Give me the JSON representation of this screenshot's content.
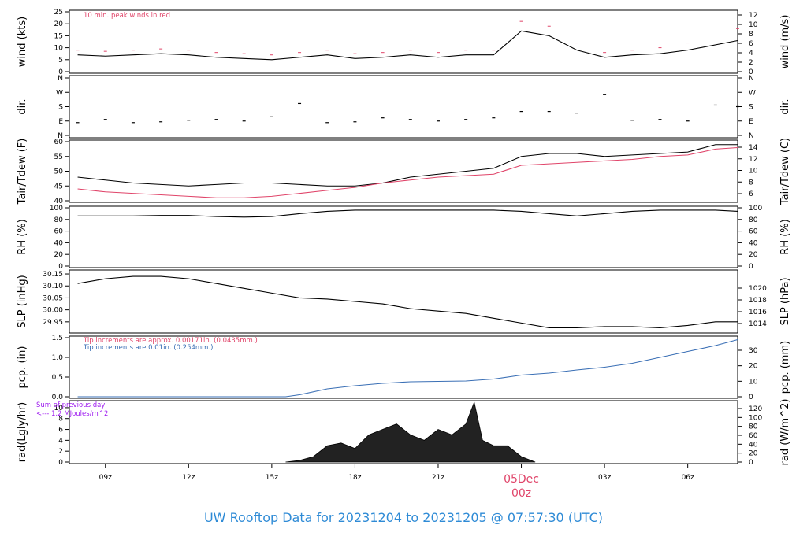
{
  "footer_title": "UW Rooftop Data for 20231204  to  20231205 @ 07:57:30  (UTC)",
  "colors": {
    "black": "#000000",
    "red": "#e0456a",
    "blue": "#3a6fb5",
    "purple": "#a020f0",
    "title_blue": "#2f8bd6"
  },
  "x_axis": {
    "ticks": [
      {
        "hour": 9,
        "label": "09z"
      },
      {
        "hour": 12,
        "label": "12z"
      },
      {
        "hour": 15,
        "label": "15z"
      },
      {
        "hour": 18,
        "label": "18z"
      },
      {
        "hour": 21,
        "label": "21z"
      },
      {
        "hour": 24,
        "label": "",
        "date_label": "05Dec",
        "sub_label": "00z"
      },
      {
        "hour": 27,
        "label": "03z"
      },
      {
        "hour": 30,
        "label": "06z"
      }
    ]
  },
  "chart_data": [
    {
      "type": "line",
      "id": "wind",
      "ylabel": "wind (kts)",
      "ylabel_right": "wind (m/s)",
      "ylim": [
        0,
        25
      ],
      "yticks": [
        "0",
        "5",
        "10",
        "15",
        "20",
        "25"
      ],
      "yticks_right": [
        "0",
        "2",
        "4",
        "6",
        "8",
        "10",
        "12"
      ],
      "annotation": "10 min. peak winds in red",
      "series": [
        {
          "role": "wind",
          "x": [
            8,
            9,
            10,
            11,
            12,
            13,
            14,
            15,
            16,
            17,
            18,
            19,
            20,
            21,
            22,
            23,
            24,
            25,
            26,
            27,
            28,
            29,
            30,
            31.8
          ],
          "y": [
            7,
            6.5,
            7,
            7.5,
            7,
            6,
            5.5,
            5,
            6,
            7,
            5.5,
            6,
            7,
            6,
            7,
            7,
            17,
            15,
            9,
            6,
            7,
            7.5,
            9,
            13
          ]
        },
        {
          "role": "peak",
          "x": [
            8,
            9,
            10,
            11,
            12,
            13,
            14,
            15,
            16,
            17,
            18,
            19,
            20,
            21,
            22,
            23,
            24,
            25,
            26,
            27,
            28,
            29,
            30,
            31.8
          ],
          "y": [
            9,
            8.5,
            9,
            9.5,
            9,
            8,
            7.5,
            7,
            8,
            9,
            7.5,
            8,
            9,
            8,
            9,
            9,
            21,
            19,
            12,
            8,
            9,
            10,
            12,
            18
          ]
        }
      ]
    },
    {
      "type": "scatter",
      "id": "dir",
      "ylabel": "dir.",
      "ylabel_right": "dir.",
      "yticks": [
        "N",
        "E",
        "S",
        "W",
        "N"
      ],
      "yticks_right": [
        "N",
        "E",
        "S",
        "W",
        "N"
      ],
      "series": [
        {
          "x": [
            8,
            9,
            10,
            11,
            12,
            13,
            14,
            15,
            16,
            17,
            18,
            19,
            20,
            21,
            22,
            23,
            24,
            25,
            26,
            27,
            28,
            29,
            30,
            31,
            31.8
          ],
          "y": [
            80,
            100,
            80,
            85,
            95,
            100,
            90,
            120,
            200,
            80,
            85,
            110,
            100,
            90,
            100,
            110,
            150,
            150,
            140,
            255,
            95,
            100,
            90,
            190,
            180
          ]
        }
      ]
    },
    {
      "type": "line",
      "id": "temp",
      "ylabel": "Tair/Tdew (F)",
      "ylabel_right": "Tair/Tdew (C)",
      "ylim": [
        40,
        60
      ],
      "yticks": [
        "40",
        "45",
        "50",
        "55",
        "60"
      ],
      "yticks_right": [
        "6",
        "8",
        "10",
        "12",
        "14"
      ],
      "series": [
        {
          "role": "tair",
          "x": [
            8,
            9,
            10,
            11,
            12,
            13,
            14,
            15,
            16,
            17,
            18,
            19,
            20,
            21,
            22,
            23,
            24,
            25,
            26,
            27,
            28,
            29,
            30,
            31,
            31.8
          ],
          "y": [
            48,
            47,
            46,
            45.5,
            45,
            45.5,
            46,
            46,
            45.5,
            45,
            45,
            46,
            48,
            49,
            50,
            51,
            55,
            56,
            56,
            55,
            55.5,
            56,
            56.5,
            59,
            59
          ]
        },
        {
          "role": "tdew",
          "x": [
            8,
            9,
            10,
            11,
            12,
            13,
            14,
            15,
            16,
            17,
            18,
            19,
            20,
            21,
            22,
            23,
            24,
            25,
            26,
            27,
            28,
            29,
            30,
            31,
            31.8
          ],
          "y": [
            44,
            43,
            42.5,
            42,
            41.5,
            41,
            41,
            41.5,
            42.5,
            43.5,
            44.5,
            46,
            47,
            48,
            48.5,
            49,
            52,
            52.5,
            53,
            53.5,
            54,
            55,
            55.5,
            57.5,
            58
          ]
        }
      ]
    },
    {
      "type": "line",
      "id": "rh",
      "ylabel": "RH (%)",
      "ylabel_right": "RH (%)",
      "ylim": [
        0,
        100
      ],
      "yticks": [
        "0",
        "20",
        "40",
        "60",
        "80",
        "100"
      ],
      "yticks_right": [
        "0",
        "20",
        "40",
        "60",
        "80",
        "100"
      ],
      "series": [
        {
          "x": [
            8,
            9,
            10,
            11,
            12,
            13,
            14,
            15,
            16,
            17,
            18,
            19,
            20,
            21,
            22,
            23,
            24,
            25,
            26,
            27,
            28,
            29,
            30,
            31,
            31.8
          ],
          "y": [
            86,
            86,
            86,
            87,
            87,
            85,
            84,
            85,
            90,
            94,
            96,
            96,
            96,
            96,
            96,
            96,
            94,
            90,
            86,
            90,
            94,
            96,
            96,
            96,
            94
          ]
        }
      ]
    },
    {
      "type": "line",
      "id": "slp",
      "ylabel": "SLP (inHg)",
      "ylabel_right": "SLP (hPa)",
      "ylim": [
        29.91,
        30.16
      ],
      "yticks": [
        "29.95",
        "30.00",
        "30.05",
        "30.10",
        "30.15"
      ],
      "yticks_right": [
        "1014",
        "1016",
        "1018",
        "1020"
      ],
      "series": [
        {
          "x": [
            8,
            9,
            10,
            11,
            12,
            13,
            14,
            15,
            16,
            17,
            18,
            19,
            20,
            21,
            22,
            23,
            24,
            25,
            26,
            27,
            28,
            29,
            30,
            31,
            31.8
          ],
          "y": [
            30.11,
            30.13,
            30.14,
            30.14,
            30.13,
            30.11,
            30.09,
            30.07,
            30.05,
            30.045,
            30.035,
            30.025,
            30.005,
            29.995,
            29.985,
            29.965,
            29.945,
            29.925,
            29.925,
            29.93,
            29.93,
            29.925,
            29.935,
            29.95,
            29.95
          ]
        }
      ]
    },
    {
      "type": "line",
      "id": "pcp",
      "ylabel": "pcp. (in)",
      "ylabel_right": "pcp. (mm)",
      "ylim": [
        0,
        1.5
      ],
      "yticks": [
        "0.0",
        "0.5",
        "1.0",
        "1.5"
      ],
      "yticks_right": [
        "0",
        "10",
        "20",
        "30"
      ],
      "annotation_red": "Tip increments are approx. 0.00171in. (0.0435mm.)",
      "annotation_blue": "Tip increments are 0.01in. (0.254mm.)",
      "series": [
        {
          "x": [
            8,
            15.5,
            16,
            17,
            18,
            19,
            20,
            21,
            22,
            23,
            24,
            25,
            26,
            27,
            28,
            29,
            30,
            31,
            31.8
          ],
          "y": [
            0,
            0,
            0.05,
            0.2,
            0.28,
            0.34,
            0.38,
            0.39,
            0.4,
            0.45,
            0.55,
            0.6,
            0.68,
            0.75,
            0.85,
            1.0,
            1.15,
            1.3,
            1.45
          ]
        }
      ]
    },
    {
      "type": "area",
      "id": "rad",
      "ylabel": "rad(Lgly/hr)",
      "ylabel_right": "rad (W/m^2)",
      "ylim": [
        0,
        11
      ],
      "yticks": [
        "0",
        "2",
        "4",
        "6",
        "8",
        "10"
      ],
      "yticks_right": [
        "0",
        "20",
        "40",
        "60",
        "80",
        "100",
        "120"
      ],
      "annotation_line1": "Sum of previous day",
      "annotation_line2": "<--- 1.2 MJoules/m^2",
      "series": [
        {
          "x": [
            15.5,
            16,
            16.5,
            17,
            17.5,
            18,
            18.5,
            19,
            19.5,
            20,
            20.5,
            21,
            21.5,
            22,
            22.3,
            22.6,
            23,
            23.5,
            24,
            24.5
          ],
          "y": [
            0,
            0.3,
            1,
            3,
            3.5,
            2.5,
            5,
            6,
            7,
            5,
            4,
            6,
            5,
            7,
            11,
            4,
            3,
            3,
            1,
            0
          ]
        }
      ]
    }
  ]
}
